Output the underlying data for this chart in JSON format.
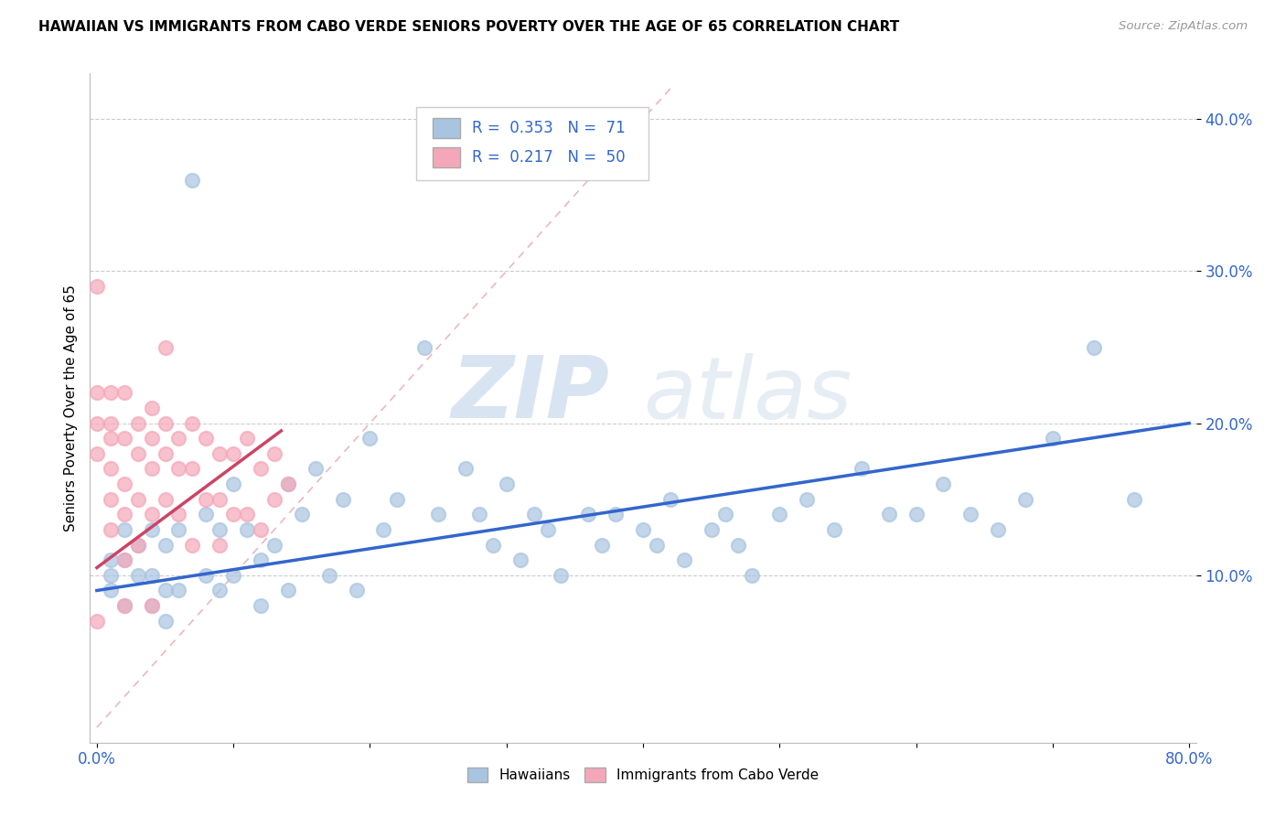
{
  "title": "HAWAIIAN VS IMMIGRANTS FROM CABO VERDE SENIORS POVERTY OVER THE AGE OF 65 CORRELATION CHART",
  "source": "Source: ZipAtlas.com",
  "ylabel": "Seniors Poverty Over the Age of 65",
  "xlim": [
    0.0,
    0.8
  ],
  "ylim": [
    0.0,
    0.42
  ],
  "xticks": [
    0.0,
    0.1,
    0.2,
    0.3,
    0.4,
    0.5,
    0.6,
    0.7,
    0.8
  ],
  "xticklabels": [
    "0.0%",
    "",
    "",
    "",
    "",
    "",
    "",
    "",
    "80.0%"
  ],
  "ytick_positions": [
    0.1,
    0.2,
    0.3,
    0.4
  ],
  "yticklabels": [
    "10.0%",
    "20.0%",
    "30.0%",
    "40.0%"
  ],
  "watermark_zip": "ZIP",
  "watermark_atlas": "atlas",
  "hawaiians_color": "#a8c4e0",
  "cabo_verde_color": "#f4a7b9",
  "trend_hawaiians_color": "#3366cc",
  "trend_cabo_verde_color": "#cc4466",
  "diagonal_color": "#e8b0b8",
  "hawaiians_x": [
    0.01,
    0.01,
    0.01,
    0.02,
    0.02,
    0.02,
    0.03,
    0.03,
    0.04,
    0.04,
    0.04,
    0.05,
    0.05,
    0.05,
    0.06,
    0.06,
    0.07,
    0.08,
    0.08,
    0.09,
    0.09,
    0.1,
    0.1,
    0.11,
    0.12,
    0.12,
    0.13,
    0.14,
    0.14,
    0.15,
    0.16,
    0.17,
    0.18,
    0.19,
    0.2,
    0.21,
    0.22,
    0.24,
    0.25,
    0.27,
    0.28,
    0.29,
    0.3,
    0.31,
    0.32,
    0.33,
    0.34,
    0.36,
    0.37,
    0.38,
    0.4,
    0.41,
    0.42,
    0.43,
    0.45,
    0.46,
    0.47,
    0.48,
    0.5,
    0.52,
    0.54,
    0.56,
    0.58,
    0.6,
    0.62,
    0.64,
    0.66,
    0.68,
    0.7,
    0.73,
    0.76
  ],
  "hawaiians_y": [
    0.11,
    0.1,
    0.09,
    0.13,
    0.11,
    0.08,
    0.12,
    0.1,
    0.13,
    0.1,
    0.08,
    0.12,
    0.09,
    0.07,
    0.13,
    0.09,
    0.36,
    0.14,
    0.1,
    0.13,
    0.09,
    0.16,
    0.1,
    0.13,
    0.11,
    0.08,
    0.12,
    0.16,
    0.09,
    0.14,
    0.17,
    0.1,
    0.15,
    0.09,
    0.19,
    0.13,
    0.15,
    0.25,
    0.14,
    0.17,
    0.14,
    0.12,
    0.16,
    0.11,
    0.14,
    0.13,
    0.1,
    0.14,
    0.12,
    0.14,
    0.13,
    0.12,
    0.15,
    0.11,
    0.13,
    0.14,
    0.12,
    0.1,
    0.14,
    0.15,
    0.13,
    0.17,
    0.14,
    0.14,
    0.16,
    0.14,
    0.13,
    0.15,
    0.19,
    0.25,
    0.15
  ],
  "cabo_verde_x": [
    0.0,
    0.0,
    0.0,
    0.0,
    0.0,
    0.01,
    0.01,
    0.01,
    0.01,
    0.01,
    0.01,
    0.02,
    0.02,
    0.02,
    0.02,
    0.02,
    0.02,
    0.03,
    0.03,
    0.03,
    0.03,
    0.04,
    0.04,
    0.04,
    0.04,
    0.04,
    0.05,
    0.05,
    0.05,
    0.06,
    0.06,
    0.06,
    0.07,
    0.07,
    0.07,
    0.08,
    0.08,
    0.09,
    0.09,
    0.09,
    0.1,
    0.1,
    0.11,
    0.11,
    0.12,
    0.12,
    0.13,
    0.13,
    0.14,
    0.05
  ],
  "cabo_verde_y": [
    0.29,
    0.22,
    0.2,
    0.18,
    0.07,
    0.22,
    0.19,
    0.17,
    0.15,
    0.13,
    0.2,
    0.22,
    0.19,
    0.16,
    0.14,
    0.11,
    0.08,
    0.2,
    0.18,
    0.15,
    0.12,
    0.21,
    0.19,
    0.17,
    0.14,
    0.08,
    0.2,
    0.18,
    0.15,
    0.19,
    0.17,
    0.14,
    0.2,
    0.17,
    0.12,
    0.19,
    0.15,
    0.18,
    0.15,
    0.12,
    0.18,
    0.14,
    0.19,
    0.14,
    0.17,
    0.13,
    0.18,
    0.15,
    0.16,
    0.25
  ],
  "trend_h_x0": 0.0,
  "trend_h_y0": 0.09,
  "trend_h_x1": 0.8,
  "trend_h_y1": 0.2,
  "trend_c_x0": 0.0,
  "trend_c_y0": 0.105,
  "trend_c_x1": 0.135,
  "trend_c_y1": 0.195
}
